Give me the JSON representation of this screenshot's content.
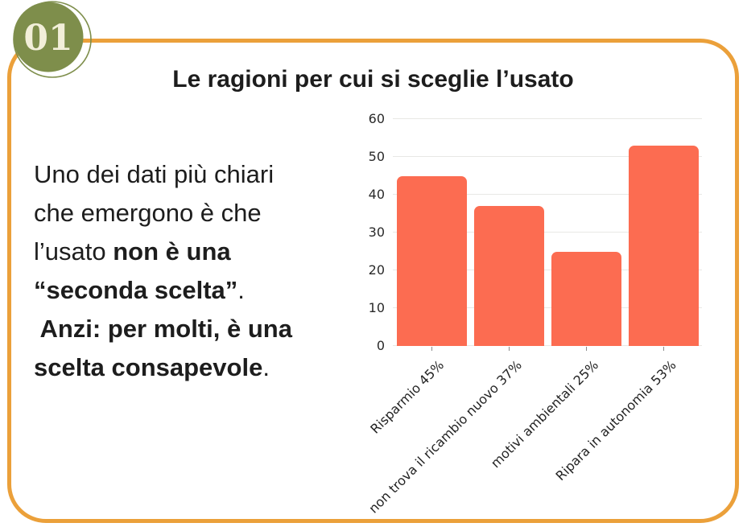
{
  "badge": {
    "number": "01"
  },
  "title": "Le ragioni per cui si sceglie l’usato",
  "text_block": {
    "line1": "Uno dei dati più chiari",
    "line2": "che emergono è che",
    "line3_regular": "l’usato ",
    "line3_bold": "non è una",
    "line4_bold": "“seconda scelta”",
    "line4_regular": ".",
    "line5_bold": " Anzi: per molti, è una",
    "line6_bold": "scelta consapevole",
    "line6_regular": "."
  },
  "chart_data": {
    "type": "bar",
    "categories": [
      "Risparmio 45%",
      "non trova il ricambio nuovo 37%",
      "motivi ambientali 25%",
      "Ripara in autonomia 53%"
    ],
    "values": [
      45,
      37,
      25,
      53
    ],
    "title": "",
    "xlabel": "",
    "ylabel": "",
    "ylim": [
      0,
      60
    ],
    "yticks": [
      0,
      10,
      20,
      30,
      40,
      50,
      60
    ],
    "grid": true,
    "legend": false,
    "bar_color": "#FC6C51"
  },
  "colors": {
    "card_border": "#EBA03A",
    "badge_fill": "#7E8E4B",
    "badge_number": "#F2EFD9",
    "bar": "#FC6C51",
    "gridline": "#E8E8E5",
    "text": "#1D1D1D"
  }
}
